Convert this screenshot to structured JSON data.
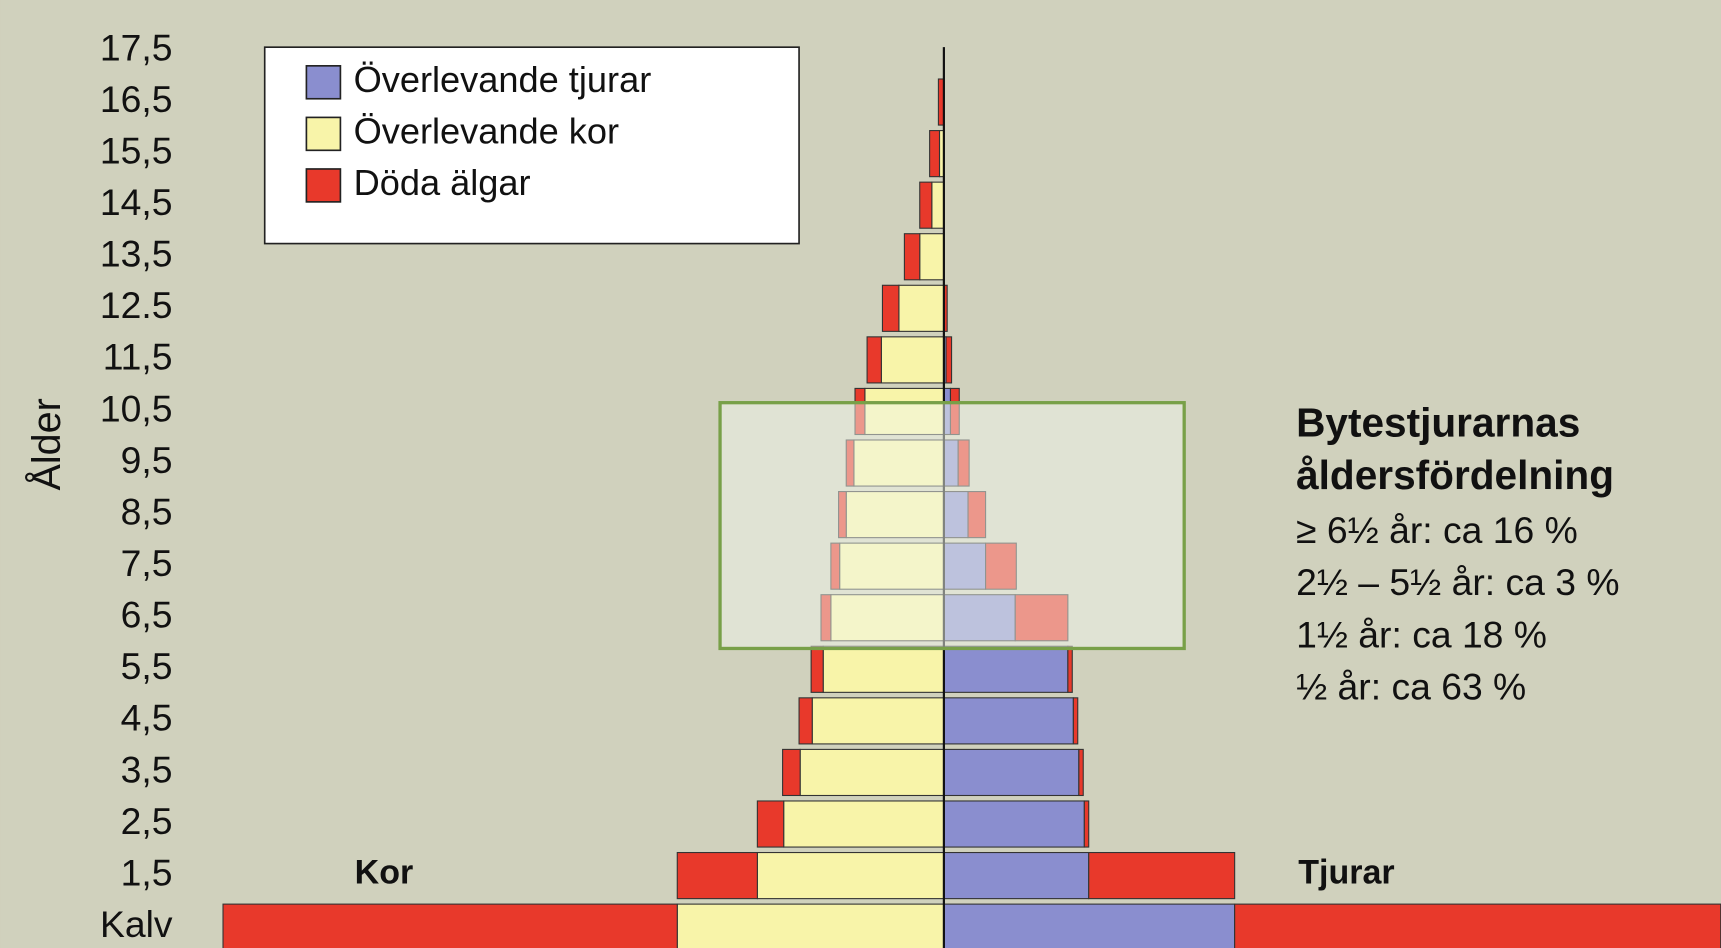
{
  "chart_data": {
    "type": "pyramid",
    "y_label": "Ålder",
    "categories": [
      "Kalv",
      "1,5",
      "2,5",
      "3,5",
      "4,5",
      "5,5",
      "6,5",
      "7,5",
      "8,5",
      "9,5",
      "10,5",
      "11,5",
      "12.5",
      "13,5",
      "14,5",
      "15,5",
      "16,5",
      "17,5"
    ],
    "series": [
      {
        "name": "Överlevande tjurar",
        "color": "#8a8ecf",
        "values": [
          265,
          132,
          128,
          123,
          118,
          113,
          65,
          38,
          22,
          13,
          6,
          2,
          0,
          0,
          0,
          0,
          0,
          0
        ]
      },
      {
        "name": "Överlevande kor",
        "color": "#f8f4a9",
        "values": [
          243,
          170,
          146,
          131,
          120,
          110,
          103,
          95,
          89,
          82,
          72,
          57,
          41,
          22,
          11,
          4,
          0,
          0
        ]
      },
      {
        "name": "Döda älgar",
        "color": "#e8392b",
        "values_kor": [
          414,
          73,
          24,
          16,
          12,
          11,
          9,
          8,
          7,
          7,
          9,
          13,
          15,
          14,
          11,
          9,
          5,
          0
        ],
        "values_tjurar": [
          443,
          133,
          4,
          4,
          4,
          4,
          48,
          28,
          16,
          10,
          8,
          5,
          3,
          0,
          0,
          0,
          0,
          0
        ]
      }
    ],
    "side_labels": [
      "Kor",
      "Tjurar"
    ],
    "annotation": {
      "title": [
        "Bytestjurarnas",
        "åldersfördelning"
      ],
      "lines": [
        "≥ 6½ år: ca 16 %",
        "2½ – 5½ år: ca 3 %",
        "1½ år: ca 18 %",
        "½ år: ca 63 %"
      ]
    }
  }
}
